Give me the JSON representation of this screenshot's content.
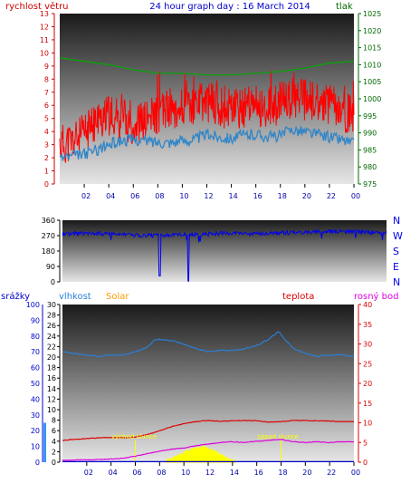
{
  "colors": {
    "wind_axis": "#cc0000",
    "pressure_axis": "#006600",
    "title": "#0000cc",
    "wind_avg": "#2f86c8",
    "wind_gust": "#ff0000",
    "pressure_line": "#00aa00",
    "wind_dir": "#0000ee",
    "rain": "#0000cc",
    "humidity": "#2a7fd8",
    "solar": "#ffff00",
    "solar_label": "#ff9900",
    "temperature": "#dd0000",
    "dewpoint": "#dd00dd",
    "hour_labels": "#0000aa"
  },
  "chart_data": [
    {
      "type": "line",
      "title": "24 hour graph day : 16 March 2014",
      "ylabel_left": "rychlost větru",
      "ylabel_right": "tlak",
      "ylim_left": [
        0,
        13
      ],
      "ylim_right": [
        975,
        1025
      ],
      "y_ticks_left": [
        "0",
        "1",
        "2",
        "3",
        "4",
        "5",
        "6",
        "7",
        "8",
        "9",
        "10",
        "11",
        "12",
        "13"
      ],
      "y_ticks_right": [
        "975",
        "980",
        "985",
        "990",
        "995",
        "1000",
        "1005",
        "1010",
        "1015",
        "1020",
        "1025"
      ],
      "x_ticks": [
        "02",
        "04",
        "06",
        "08",
        "10",
        "12",
        "14",
        "16",
        "18",
        "20",
        "22",
        "00"
      ],
      "series": [
        {
          "key": "wind_gust",
          "hours": [
            0,
            1,
            2,
            3,
            4,
            5,
            6,
            7,
            8,
            9,
            10,
            11,
            12,
            13,
            14,
            15,
            16,
            17,
            18,
            19,
            20,
            21,
            22,
            23,
            24
          ],
          "values": [
            3.0,
            3.2,
            3.8,
            4.8,
            5.2,
            5.0,
            4.6,
            4.8,
            5.4,
            5.8,
            5.8,
            6.0,
            6.3,
            6.0,
            5.6,
            5.8,
            6.0,
            5.8,
            6.2,
            6.6,
            6.4,
            6.2,
            6.0,
            5.6,
            5.2
          ]
        },
        {
          "key": "wind_avg",
          "hours": [
            0,
            1,
            2,
            3,
            4,
            5,
            6,
            7,
            8,
            9,
            10,
            11,
            12,
            13,
            14,
            15,
            16,
            17,
            18,
            19,
            20,
            21,
            22,
            23,
            24
          ],
          "values": [
            2.0,
            2.1,
            2.3,
            2.6,
            3.0,
            3.3,
            3.4,
            3.3,
            3.2,
            3.2,
            3.3,
            3.4,
            3.8,
            3.6,
            3.5,
            3.7,
            3.8,
            3.6,
            3.7,
            4.2,
            4.0,
            3.8,
            3.6,
            3.4,
            3.1
          ]
        },
        {
          "key": "pressure",
          "hours": [
            0,
            2,
            4,
            6,
            8,
            10,
            12,
            14,
            16,
            18,
            20,
            22,
            24
          ],
          "values": [
            1012,
            1011,
            1010,
            1008.5,
            1007.5,
            1007.5,
            1007,
            1007,
            1007.5,
            1008,
            1009,
            1010.5,
            1011
          ]
        }
      ]
    },
    {
      "type": "line",
      "y_ticks": [
        "0",
        "90",
        "180",
        "270",
        "360"
      ],
      "ylim": [
        0,
        360
      ],
      "compass_labels": [
        "N",
        "W",
        "S",
        "E",
        "N"
      ],
      "series": [
        {
          "key": "wind_dir",
          "hours": [
            0,
            2,
            4,
            6,
            8,
            9.5,
            10,
            12,
            14,
            16,
            18,
            20,
            22,
            24
          ],
          "values": [
            280,
            285,
            278,
            270,
            272,
            280,
            275,
            285,
            280,
            285,
            290,
            295,
            292,
            285
          ]
        }
      ]
    },
    {
      "type": "line",
      "labels": {
        "rain": "srážky",
        "humidity": "vlhkost",
        "solar": "Solar",
        "temperature": "teplota",
        "dewpoint": "rosný bod"
      },
      "ylim_humidity": [
        0,
        100
      ],
      "ylim_rain": [
        0,
        30
      ],
      "ylim_temperature": [
        0,
        40
      ],
      "y_ticks_humidity": [
        "0",
        "10",
        "20",
        "30",
        "40",
        "50",
        "60",
        "70",
        "80",
        "90",
        "100"
      ],
      "y_ticks_rain": [
        "0",
        "2",
        "4",
        "6",
        "8",
        "10",
        "12",
        "14",
        "16",
        "18",
        "20",
        "22",
        "24",
        "26",
        "28",
        "30"
      ],
      "y_ticks_temperature": [
        "0",
        "5",
        "10",
        "15",
        "20",
        "25",
        "30",
        "35",
        "40"
      ],
      "x_ticks": [
        "02",
        "04",
        "06",
        "08",
        "10",
        "12",
        "14",
        "16",
        "18",
        "20",
        "22",
        "00"
      ],
      "annotations": {
        "sunrise": "východ slunce",
        "sunset": "západ slunce"
      },
      "sunrise_hour": 6.0,
      "sunset_hour": 18.0,
      "series": [
        {
          "key": "humidity",
          "hours": [
            0,
            1,
            2,
            3,
            4,
            5,
            6,
            7,
            7.5,
            8,
            9,
            10,
            11,
            12,
            13,
            14,
            15,
            16,
            17,
            17.8,
            18.3,
            19,
            20,
            21,
            22,
            23,
            24
          ],
          "values": [
            70,
            69,
            68,
            67,
            68,
            68,
            70,
            73,
            77,
            78,
            77,
            75,
            72,
            70,
            71,
            71,
            72,
            74,
            78,
            83,
            78,
            72,
            69,
            67,
            68,
            68,
            67
          ]
        },
        {
          "key": "temperature",
          "hours": [
            0,
            1,
            2,
            3,
            4,
            5,
            6,
            7,
            8,
            9,
            10,
            11,
            12,
            13,
            14,
            15,
            16,
            17,
            18,
            19,
            20,
            21,
            22,
            23,
            24
          ],
          "values": [
            5.5,
            5.8,
            6.0,
            6.2,
            6.3,
            6.2,
            6.4,
            7.0,
            8.0,
            9.0,
            9.8,
            10.3,
            10.6,
            10.4,
            10.5,
            10.6,
            10.5,
            10.2,
            10.3,
            10.6,
            10.6,
            10.5,
            10.4,
            10.3,
            10.3
          ]
        },
        {
          "key": "dewpoint",
          "hours": [
            0,
            1,
            2,
            3,
            4,
            5,
            6,
            7,
            8,
            9,
            10,
            11,
            12,
            13,
            14,
            15,
            16,
            17,
            18,
            19,
            20,
            21,
            22,
            23,
            24
          ],
          "values": [
            0.5,
            0.6,
            0.6,
            0.7,
            0.8,
            1.0,
            1.5,
            2.2,
            2.8,
            3.3,
            3.6,
            4.2,
            4.6,
            5.0,
            5.2,
            5.0,
            5.3,
            5.6,
            5.8,
            5.2,
            5.0,
            5.2,
            5.0,
            5.2,
            5.2
          ]
        },
        {
          "key": "solar",
          "hours": [
            8.5,
            9,
            9.5,
            10,
            10.5,
            11,
            11.5,
            12,
            12.5,
            13,
            13.5,
            14,
            14.2
          ],
          "values": [
            0.2,
            0.8,
            1.6,
            2.4,
            3.0,
            3.4,
            3.8,
            3.2,
            2.6,
            1.8,
            1.0,
            0.3,
            0
          ]
        },
        {
          "key": "rain",
          "hours": [
            0,
            24
          ],
          "values": [
            0.1,
            0.1
          ]
        }
      ]
    }
  ]
}
